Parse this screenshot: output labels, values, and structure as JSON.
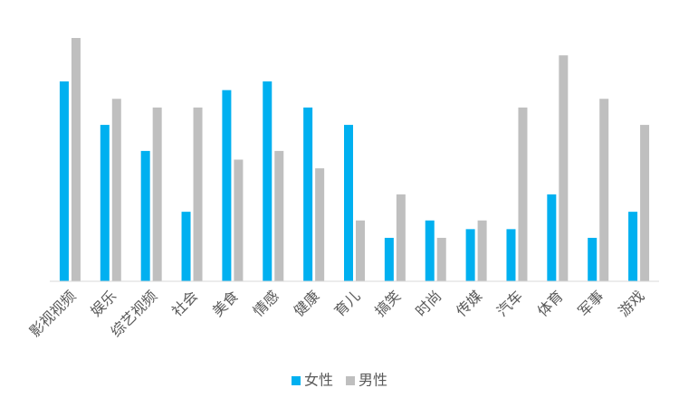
{
  "chart_data": {
    "type": "bar",
    "categories": [
      "影视视频",
      "娱乐",
      "综艺视频",
      "社会",
      "美食",
      "情感",
      "健康",
      "育儿",
      "搞笑",
      "时尚",
      "传媒",
      "汽车",
      "体育",
      "军事",
      "游戏"
    ],
    "series": [
      {
        "name": "女性",
        "color": "#00b0f0",
        "values": [
          23,
          18,
          15,
          8,
          22,
          23,
          20,
          18,
          5,
          7,
          6,
          6,
          10,
          5,
          8
        ]
      },
      {
        "name": "男性",
        "color": "#bfbfbf",
        "values": [
          28,
          21,
          20,
          20,
          14,
          15,
          13,
          7,
          10,
          5,
          7,
          20,
          26,
          21,
          18
        ]
      }
    ],
    "ylim": [
      0,
      28
    ]
  }
}
